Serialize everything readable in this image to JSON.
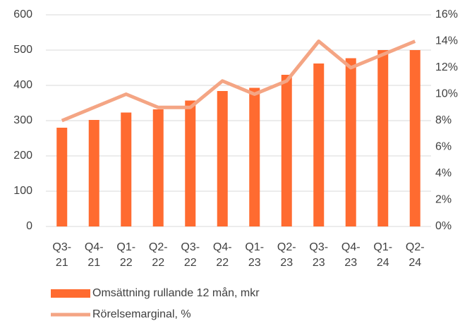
{
  "chart_data": {
    "type": "bar",
    "categories": [
      "Q3-\n21",
      "Q4-\n21",
      "Q1-\n22",
      "Q2-\n22",
      "Q3-\n22",
      "Q4-\n22",
      "Q1-\n23",
      "Q2-\n23",
      "Q3-\n23",
      "Q4-\n23",
      "Q1-\n24",
      "Q2-\n24"
    ],
    "series": [
      {
        "name": "Omsättning rullande 12 mån, mkr",
        "type": "bar",
        "color": "#ff6b30",
        "values": [
          280,
          302,
          323,
          332,
          357,
          384,
          393,
          430,
          462,
          477,
          500,
          500
        ]
      },
      {
        "name": "Rörelsemarginal, %",
        "type": "line",
        "axis": "y2",
        "color": "#f4a584",
        "values": [
          8,
          9,
          10,
          9,
          9,
          11,
          10,
          11,
          14,
          12,
          13,
          14
        ]
      }
    ],
    "ylim": [
      0,
      600
    ],
    "yticks": [
      0,
      100,
      200,
      300,
      400,
      500,
      600
    ],
    "y2lim": [
      0,
      16
    ],
    "y2ticks": [
      {
        "value": 0,
        "label": "0%"
      },
      {
        "value": 2,
        "label": "2%"
      },
      {
        "value": 4,
        "label": "4%"
      },
      {
        "value": 6,
        "label": "6%"
      },
      {
        "value": 8,
        "label": "8%"
      },
      {
        "value": 10,
        "label": "10%"
      },
      {
        "value": 12,
        "label": "12%"
      },
      {
        "value": 14,
        "label": "14%"
      },
      {
        "value": 16,
        "label": "16%"
      }
    ],
    "grid": true,
    "legend": "bottom"
  }
}
